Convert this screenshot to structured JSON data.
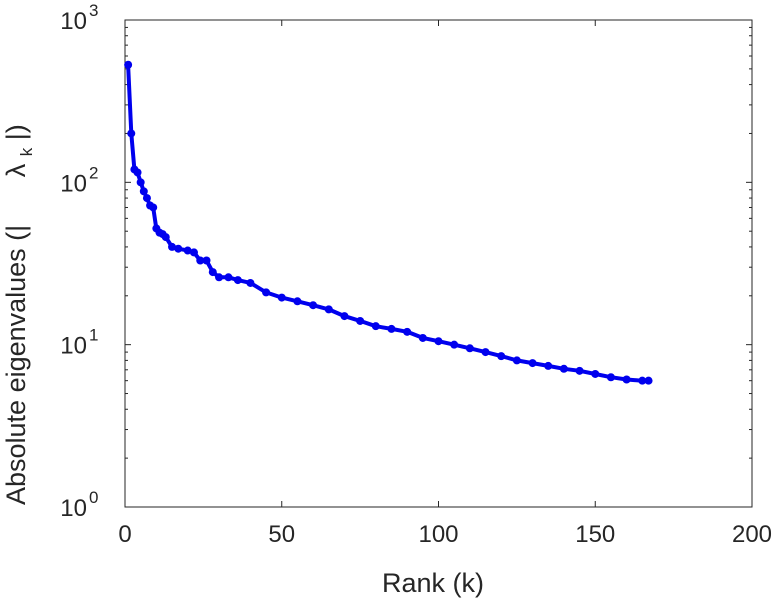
{
  "chart_data": {
    "type": "line",
    "title": "",
    "xlabel": "Rank (k)",
    "ylabel_text": "Absolute eigenvalues (|",
    "ylabel_symbol": "λ",
    "ylabel_subscript": "k",
    "ylabel_close": "|)",
    "xlim": [
      0,
      200
    ],
    "ylim": [
      1,
      1000
    ],
    "yscale": "log",
    "grid": false,
    "legend": "none",
    "series_color": "#0000ee",
    "x_ticks": [
      0,
      50,
      100,
      150,
      200
    ],
    "x_tick_labels": [
      "0",
      "50",
      "100",
      "150",
      "200"
    ],
    "y_ticks": [
      1,
      10,
      100,
      1000
    ],
    "y_tick_base": "10",
    "y_tick_exponents": [
      "0",
      "1",
      "2",
      "3"
    ],
    "series": [
      {
        "x": [
          1,
          2,
          3,
          4,
          5,
          6,
          7,
          8,
          9,
          10,
          11,
          12,
          13,
          15,
          17,
          20,
          22,
          24,
          26,
          28,
          30,
          33,
          36,
          40,
          45,
          50,
          55,
          60,
          65,
          70,
          75,
          80,
          85,
          90,
          95,
          100,
          105,
          110,
          115,
          120,
          125,
          130,
          135,
          140,
          145,
          150,
          155,
          160,
          165,
          167
        ],
        "y": [
          530,
          200,
          120,
          115,
          100,
          88,
          80,
          72,
          70,
          52,
          49,
          48,
          46,
          40,
          39,
          38,
          37,
          33,
          33,
          28,
          26,
          26,
          25,
          24,
          21,
          19.5,
          18.5,
          17.5,
          16.5,
          15,
          14,
          13,
          12.5,
          12,
          11,
          10.5,
          10,
          9.5,
          9,
          8.5,
          8,
          7.7,
          7.4,
          7.1,
          6.9,
          6.6,
          6.3,
          6.1,
          6.0,
          6.0
        ]
      }
    ]
  }
}
